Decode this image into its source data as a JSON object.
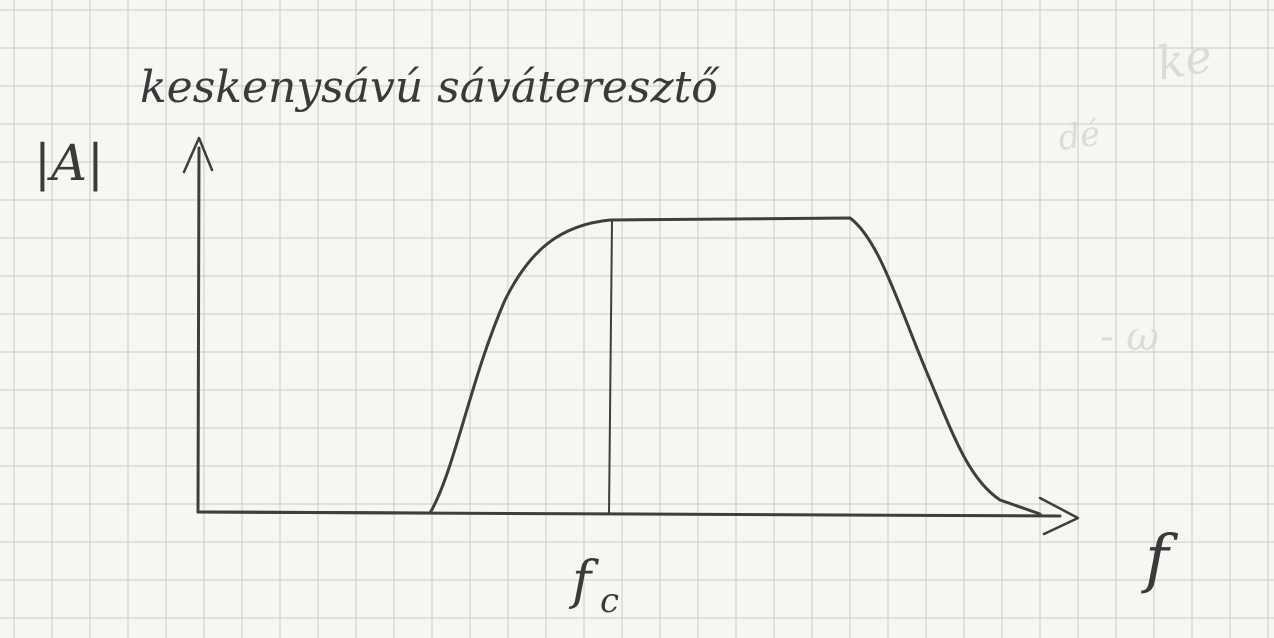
{
  "sheet": {
    "paper_color": "#f6f6f3",
    "grid_color": "#c9c9c6",
    "ink_color": "#3e3e3e"
  },
  "title": "keskenysávú sáváteresztő",
  "axes": {
    "y_label": "|A|",
    "x_label": "f",
    "center_label": "f",
    "center_subscript": "c"
  },
  "bleed_through": {
    "line1": "ke",
    "line2": "dé"
  }
}
